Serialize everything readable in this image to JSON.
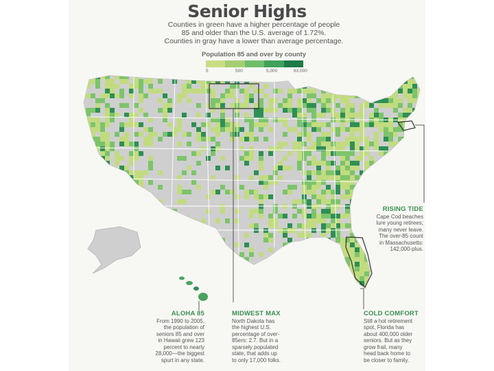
{
  "title": "Senior Highs",
  "subtitle": "Counties in green have a higher percentage of people\n85 and older than the U.S. average of 1.72%.\nCounties in gray have a lower than average percentage.",
  "legend": {
    "title": "Population 85 and over by county",
    "ticks": [
      "5",
      "500",
      "5,000",
      "63,000"
    ],
    "colors": [
      "#c9dd86",
      "#a3cf72",
      "#6fbe6c",
      "#3fa25c",
      "#1f7a47"
    ]
  },
  "colors": {
    "gray": "#cfcfcf",
    "light_green": "#c2db80",
    "mid_green": "#7cc46b",
    "dark_green": "#2f8f55",
    "callout_head": "#3a8f4f"
  },
  "callouts": {
    "rising_tide": {
      "head": "RISING TIDE",
      "body": "Cape Cod beaches\nlure young retirees;\nmany never leave.\nThe over-85 count\nin Massachusetts:\n142,000-plus."
    },
    "aloha_85": {
      "head": "ALOHA 85",
      "body": "From 1990 to 2005,\nthe population of\nseniors 85 and over\nin Hawaii grew 123\npercent to nearly\n28,000—the biggest\nspurt in any state."
    },
    "midwest_max": {
      "head": "MIDWEST MAX",
      "body": "North Dakota has\nthe highest U.S.\npercentage of over-\n85ers: 2.7. But in a\nsparsely populated\nstate, that adds up\nto only 17,000 folks."
    },
    "cold_comfort": {
      "head": "COLD COMFORT",
      "body": "Still a hot retirement\nspot, Florida has\nabout 400,000 older\nseniors. But as they\ngrow frail, many\nhead back home to\nbe closer to family."
    }
  }
}
